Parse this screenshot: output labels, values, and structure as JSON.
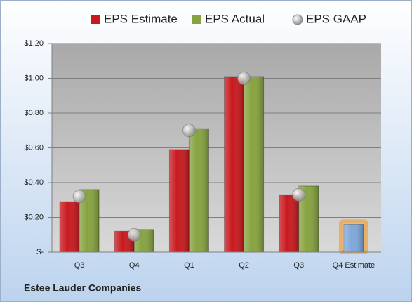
{
  "chart_data": {
    "type": "bar",
    "categories": [
      "Q3",
      "Q4",
      "Q1",
      "Q2",
      "Q3",
      "Q4 Estimate"
    ],
    "series": [
      {
        "name": "EPS Estimate",
        "color": "#c8191e",
        "values": [
          0.29,
          0.12,
          0.59,
          1.01,
          0.33,
          0.16
        ],
        "point_colors": [
          null,
          null,
          null,
          null,
          null,
          "#7ea8da"
        ]
      },
      {
        "name": "EPS Actual",
        "color": "#86a33f",
        "values": [
          0.36,
          0.13,
          0.71,
          1.01,
          0.38,
          null
        ]
      },
      {
        "name": "EPS GAAP",
        "color": "#b4b4b4",
        "marker": "circle",
        "values": [
          0.32,
          0.1,
          0.7,
          1.0,
          0.33,
          null
        ]
      }
    ],
    "ylim": [
      0,
      1.2
    ],
    "yticks": [
      {
        "value": 0,
        "label": "$-"
      },
      {
        "value": 0.2,
        "label": "$0.20"
      },
      {
        "value": 0.4,
        "label": "$0.40"
      },
      {
        "value": 0.6,
        "label": "$0.60"
      },
      {
        "value": 0.8,
        "label": "$0.80"
      },
      {
        "value": 1.0,
        "label": "$1.00"
      },
      {
        "value": 1.2,
        "label": "$1.20"
      }
    ],
    "grid": true,
    "legend": "top",
    "footnote": "Estee Lauder Companies"
  }
}
